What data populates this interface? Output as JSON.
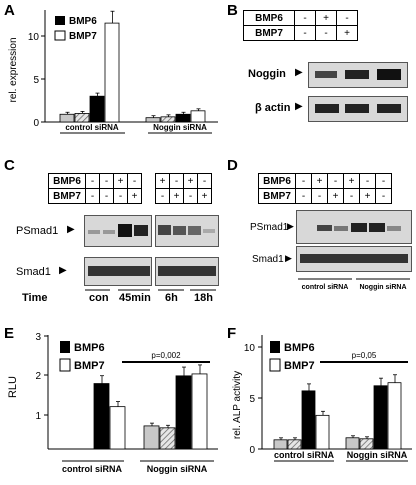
{
  "panels": {
    "A": {
      "label": "A",
      "ylabel": "rel. expression",
      "legend": [
        "BMP6",
        "BMP7"
      ],
      "groups": [
        "control siRNA",
        "Noggin siRNA"
      ],
      "yticks": [
        "0",
        "5",
        "10"
      ],
      "ymax": 13,
      "bars": [
        0.9,
        1.0,
        3.0,
        11.5,
        0.5,
        0.6,
        0.9,
        1.3
      ],
      "colors": {
        "bmp6": "#000000",
        "bmp7": "#ffffff",
        "ctrl": "#c8c8c8"
      }
    },
    "B": {
      "label": "B",
      "rows": [
        {
          "name": "BMP6",
          "vals": [
            "-",
            "+",
            "-"
          ]
        },
        {
          "name": "BMP7",
          "vals": [
            "-",
            "-",
            "+"
          ]
        }
      ],
      "blots": [
        "Noggin",
        "β actin"
      ]
    },
    "C": {
      "label": "C",
      "rows": [
        {
          "name": "BMP6",
          "vals": [
            "-",
            "-",
            "+",
            "-"
          ],
          "vals2": [
            "+",
            "-",
            "+",
            "-"
          ]
        },
        {
          "name": "BMP7",
          "vals": [
            "-",
            "-",
            "-",
            "+"
          ],
          "vals2": [
            "-",
            "+",
            "-",
            "+"
          ]
        }
      ],
      "blots": [
        "PSmad1",
        "Smad1"
      ],
      "time_label": "Time",
      "time_points": [
        "con",
        "45min",
        "6h",
        "18h"
      ]
    },
    "D": {
      "label": "D",
      "rows": [
        {
          "name": "BMP6",
          "vals": [
            "-",
            "+",
            "-",
            "+",
            "-",
            "-"
          ]
        },
        {
          "name": "BMP7",
          "vals": [
            "-",
            "-",
            "+",
            "-",
            "+",
            "-"
          ]
        }
      ],
      "blots": [
        "PSmad1",
        "Smad1"
      ],
      "groups": [
        "control siRNA",
        "Noggin siRNA"
      ]
    },
    "E": {
      "label": "E",
      "ylabel": "RLU",
      "legend": [
        "BMP6",
        "BMP7"
      ],
      "groups": [
        "control siRNA",
        "Noggin siRNA"
      ],
      "yticks": [
        "1",
        "2",
        "3"
      ],
      "pvalue": "p=0,002",
      "bars": [
        null,
        null,
        1.7,
        1.1,
        0.6,
        0.55,
        1.9,
        1.95
      ]
    },
    "F": {
      "label": "F",
      "ylabel": "rel. ALP activity",
      "legend": [
        "BMP6",
        "BMP7"
      ],
      "groups": [
        "control siRNA",
        "Noggin siRNA"
      ],
      "yticks": [
        "0",
        "5",
        "10"
      ],
      "pvalue": "p=0,05",
      "bars": [
        0.9,
        0.9,
        5.7,
        3.3,
        1.1,
        1.0,
        6.2,
        6.5
      ]
    }
  }
}
